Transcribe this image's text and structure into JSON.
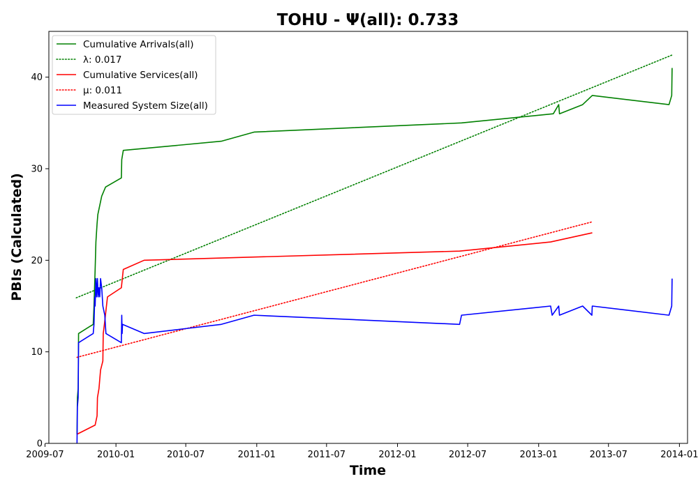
{
  "chart_data": {
    "type": "line",
    "title": "TOHU -  Ψ(all): 0.733",
    "xlabel": "Time",
    "ylabel": "PBIs (Calculated)",
    "x_type": "date",
    "xlim": [
      "2009-07-11",
      "2014-01-22"
    ],
    "ylim": [
      0,
      45
    ],
    "x_ticks": [
      "2009-07",
      "2010-01",
      "2010-07",
      "2011-01",
      "2011-07",
      "2012-01",
      "2012-07",
      "2013-01",
      "2013-07",
      "2014-01"
    ],
    "y_ticks": [
      0,
      10,
      20,
      30,
      40
    ],
    "grid": false,
    "legend_position": "top-left",
    "series": [
      {
        "name": "Cumulative Arrivals(all)",
        "color": "#008000",
        "style": "solid",
        "points": [
          [
            "2009-09-22",
            1
          ],
          [
            "2009-09-23",
            5
          ],
          [
            "2009-09-25",
            6
          ],
          [
            "2009-09-26",
            12
          ],
          [
            "2009-11-03",
            13
          ],
          [
            "2009-11-05",
            15
          ],
          [
            "2009-11-08",
            19
          ],
          [
            "2009-11-10",
            22
          ],
          [
            "2009-11-13",
            24
          ],
          [
            "2009-11-15",
            25
          ],
          [
            "2009-11-25",
            27
          ],
          [
            "2009-12-05",
            28
          ],
          [
            "2010-01-15",
            29
          ],
          [
            "2010-01-16",
            31
          ],
          [
            "2010-01-20",
            32
          ],
          [
            "2010-10-01",
            33
          ],
          [
            "2010-12-25",
            34
          ],
          [
            "2012-06-15",
            35
          ],
          [
            "2013-02-08",
            36
          ],
          [
            "2013-02-22",
            37
          ],
          [
            "2013-02-24",
            36
          ],
          [
            "2013-04-25",
            37
          ],
          [
            "2013-05-20",
            38
          ],
          [
            "2013-12-05",
            37
          ],
          [
            "2013-12-12",
            38
          ],
          [
            "2013-12-13",
            41
          ]
        ]
      },
      {
        "name": "λ: 0.017",
        "color": "#008000",
        "style": "dotted",
        "points": [
          [
            "2009-09-20",
            15.9
          ],
          [
            "2013-12-12",
            42.4
          ]
        ]
      },
      {
        "name": "Cumulative Services(all)",
        "color": "#ff0000",
        "style": "solid",
        "points": [
          [
            "2009-09-22",
            1
          ],
          [
            "2009-11-08",
            2
          ],
          [
            "2009-11-13",
            3
          ],
          [
            "2009-11-14",
            5
          ],
          [
            "2009-11-18",
            6
          ],
          [
            "2009-11-22",
            8
          ],
          [
            "2009-11-28",
            9
          ],
          [
            "2009-11-29",
            12
          ],
          [
            "2009-12-02",
            13
          ],
          [
            "2009-12-10",
            16
          ],
          [
            "2010-01-15",
            17
          ],
          [
            "2010-01-20",
            19
          ],
          [
            "2010-03-15",
            20
          ],
          [
            "2012-06-10",
            21
          ],
          [
            "2013-02-01",
            22
          ],
          [
            "2013-05-20",
            23
          ]
        ]
      },
      {
        "name": "μ: 0.011",
        "color": "#ff0000",
        "style": "dotted",
        "points": [
          [
            "2009-09-22",
            9.4
          ],
          [
            "2013-05-20",
            24.2
          ]
        ]
      },
      {
        "name": "Measured System Size(all)",
        "color": "#0000ff",
        "style": "solid",
        "points": [
          [
            "2009-09-22",
            0
          ],
          [
            "2009-09-23",
            4
          ],
          [
            "2009-09-25",
            5
          ],
          [
            "2009-09-26",
            11
          ],
          [
            "2009-11-03",
            12
          ],
          [
            "2009-11-05",
            13
          ],
          [
            "2009-11-07",
            16
          ],
          [
            "2009-11-08",
            15
          ],
          [
            "2009-11-10",
            18
          ],
          [
            "2009-11-12",
            16
          ],
          [
            "2009-11-14",
            18
          ],
          [
            "2009-11-16",
            16
          ],
          [
            "2009-11-18",
            17
          ],
          [
            "2009-11-20",
            16
          ],
          [
            "2009-11-22",
            18
          ],
          [
            "2009-11-25",
            17
          ],
          [
            "2009-11-28",
            15
          ],
          [
            "2009-12-03",
            14
          ],
          [
            "2009-12-06",
            12
          ],
          [
            "2010-01-15",
            11
          ],
          [
            "2010-01-16",
            14
          ],
          [
            "2010-01-17",
            12
          ],
          [
            "2010-01-18",
            13
          ],
          [
            "2010-03-15",
            12
          ],
          [
            "2010-10-01",
            13
          ],
          [
            "2010-12-25",
            14
          ],
          [
            "2012-06-10",
            13
          ],
          [
            "2012-06-15",
            14
          ],
          [
            "2013-02-01",
            15
          ],
          [
            "2013-02-05",
            14
          ],
          [
            "2013-02-22",
            15
          ],
          [
            "2013-02-24",
            14
          ],
          [
            "2013-04-25",
            15
          ],
          [
            "2013-05-19",
            14
          ],
          [
            "2013-05-20",
            15
          ],
          [
            "2013-12-05",
            14
          ],
          [
            "2013-12-12",
            15
          ],
          [
            "2013-12-13",
            18
          ]
        ]
      }
    ]
  }
}
